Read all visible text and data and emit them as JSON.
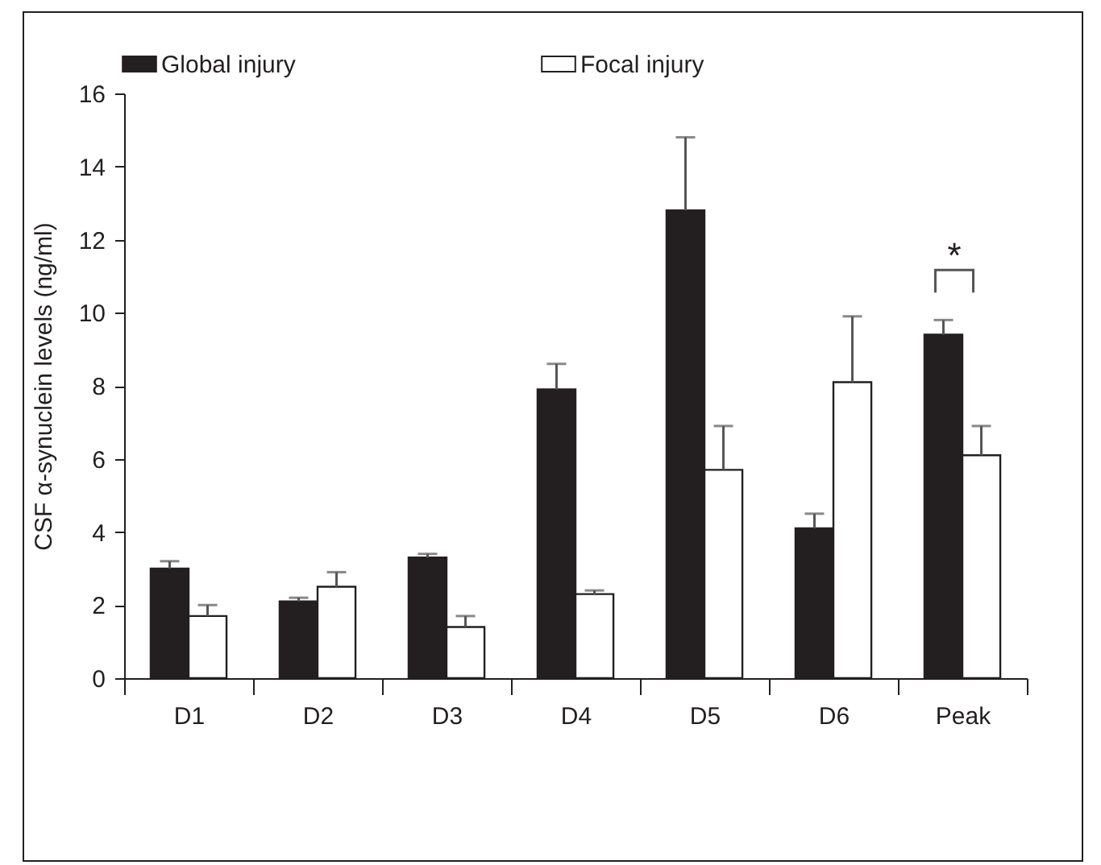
{
  "chart_data": {
    "type": "bar",
    "ylabel": "CSF α-synuclein levels (ng/ml)",
    "categories": [
      "D1",
      "D2",
      "D3",
      "D4",
      "D5",
      "D6",
      "Peak"
    ],
    "series": [
      {
        "name": "Global injury",
        "color": "#231f20",
        "values": [
          3.0,
          2.1,
          3.3,
          7.9,
          12.8,
          4.1,
          9.4
        ],
        "errors": [
          [
            3.0,
            3.2
          ],
          [
            2.1,
            2.2
          ],
          [
            3.3,
            3.4
          ],
          [
            7.9,
            8.6
          ],
          [
            12.8,
            14.8
          ],
          [
            4.1,
            4.5
          ],
          [
            9.4,
            9.8
          ]
        ]
      },
      {
        "name": "Focal injury",
        "color": "#ffffff",
        "values": [
          1.7,
          2.5,
          1.4,
          2.3,
          5.7,
          8.1,
          6.1
        ],
        "errors": [
          [
            1.7,
            2.0
          ],
          [
            2.5,
            2.9
          ],
          [
            1.4,
            1.7
          ],
          [
            2.3,
            2.4
          ],
          [
            5.7,
            6.9
          ],
          [
            8.1,
            9.9
          ],
          [
            6.1,
            6.9
          ]
        ]
      }
    ],
    "ylim": [
      0,
      16
    ],
    "yticks": [
      0,
      2,
      4,
      6,
      8,
      10,
      12,
      14,
      16
    ],
    "legend": "top",
    "grid": false,
    "annotations": [
      "*"
    ]
  }
}
